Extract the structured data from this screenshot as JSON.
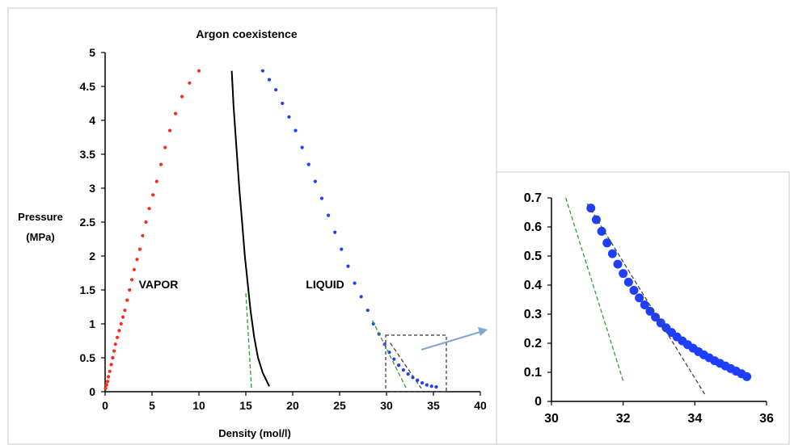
{
  "chart_data": [
    {
      "type": "scatter",
      "title": "Argon coexistence",
      "xlabel": "Density (mol/l)",
      "ylabel": "Pressure (MPa)",
      "xlim": [
        0,
        40
      ],
      "ylim": [
        0,
        5
      ],
      "xticks": [
        "0",
        "5",
        "10",
        "15",
        "20",
        "25",
        "30",
        "35",
        "40"
      ],
      "yticks": [
        "0",
        "0.5",
        "1",
        "1.5",
        "2",
        "2.5",
        "3",
        "3.5",
        "4",
        "4.5",
        "5"
      ],
      "annotations": [
        "VAPOR",
        "LIQUID"
      ],
      "colors": {
        "vapor": "#ff2a1a",
        "liquid": "#1f3fff",
        "curve": "#000000",
        "tangent_green": "#2ca02c",
        "tangent_dark": "#444444",
        "arrow": "#7fa7cf"
      },
      "series": [
        {
          "style": "dots",
          "color": "#ff2a1a",
          "x": [
            0.05,
            0.15,
            0.25,
            0.35,
            0.5,
            0.65,
            0.8,
            0.95,
            1.1,
            1.3,
            1.5,
            1.7,
            1.9,
            2.1,
            2.35,
            2.6,
            2.85,
            3.1,
            3.4,
            3.7,
            4.0,
            4.35,
            4.7,
            5.1,
            5.5,
            5.95,
            6.4,
            6.9,
            7.5,
            8.2,
            9.0,
            10.0
          ],
          "y": [
            0.05,
            0.1,
            0.15,
            0.22,
            0.3,
            0.4,
            0.5,
            0.6,
            0.7,
            0.8,
            0.9,
            1.0,
            1.1,
            1.2,
            1.35,
            1.5,
            1.65,
            1.8,
            1.95,
            2.1,
            2.3,
            2.5,
            2.7,
            2.9,
            3.1,
            3.35,
            3.6,
            3.85,
            4.1,
            4.35,
            4.55,
            4.73
          ]
        },
        {
          "style": "line",
          "color": "#000000",
          "x": [
            13.5,
            13.7,
            14.0,
            14.3,
            14.6,
            14.9,
            15.2,
            15.5,
            15.9,
            16.3,
            16.8,
            17.5
          ],
          "y": [
            4.73,
            4.2,
            3.6,
            3.0,
            2.5,
            2.0,
            1.6,
            1.2,
            0.8,
            0.5,
            0.28,
            0.08
          ]
        },
        {
          "style": "dots",
          "color": "#1f3fff",
          "x": [
            16.8,
            17.5,
            18.2,
            18.9,
            19.6,
            20.3,
            21.0,
            21.7,
            22.4,
            23.1,
            23.8,
            24.5,
            25.2,
            25.9,
            26.6,
            27.3,
            28.0,
            28.6,
            29.2,
            29.8,
            30.3,
            30.8,
            31.3,
            31.8,
            32.3,
            32.8,
            33.3,
            33.8,
            34.3,
            34.8,
            35.3
          ],
          "y": [
            4.73,
            4.6,
            4.45,
            4.25,
            4.05,
            3.85,
            3.6,
            3.35,
            3.1,
            2.85,
            2.6,
            2.35,
            2.1,
            1.85,
            1.6,
            1.4,
            1.2,
            1.0,
            0.85,
            0.7,
            0.58,
            0.48,
            0.39,
            0.32,
            0.26,
            0.21,
            0.17,
            0.13,
            0.1,
            0.08,
            0.07
          ]
        },
        {
          "style": "dashed-line",
          "color": "#2ca02c",
          "x": [
            15.0,
            15.6
          ],
          "y": [
            1.45,
            0.05
          ]
        },
        {
          "style": "dashed-line",
          "color": "#2ca02c",
          "x": [
            28.5,
            32.1
          ],
          "y": [
            1.05,
            0.05
          ]
        },
        {
          "style": "dashed-line",
          "color": "#444444",
          "x": [
            30.4,
            33.7
          ],
          "y": [
            0.72,
            0.05
          ]
        }
      ]
    },
    {
      "type": "scatter",
      "title": "",
      "xlim": [
        30,
        36
      ],
      "ylim": [
        0,
        0.7
      ],
      "xticks": [
        "30",
        "32",
        "34",
        "36"
      ],
      "yticks": [
        "0",
        "0.1",
        "0.2",
        "0.3",
        "0.4",
        "0.5",
        "0.6",
        "0.7"
      ],
      "series": [
        {
          "style": "dots",
          "color": "#1f3fff",
          "x": [
            31.1,
            31.25,
            31.4,
            31.55,
            31.7,
            31.85,
            32.0,
            32.15,
            32.3,
            32.45,
            32.6,
            32.75,
            32.9,
            33.05,
            33.2,
            33.35,
            33.5,
            33.65,
            33.8,
            33.95,
            34.1,
            34.25,
            34.4,
            34.55,
            34.7,
            34.85,
            35.0,
            35.15,
            35.3,
            35.45
          ],
          "y": [
            0.665,
            0.625,
            0.585,
            0.545,
            0.508,
            0.472,
            0.44,
            0.41,
            0.382,
            0.356,
            0.332,
            0.31,
            0.29,
            0.27,
            0.253,
            0.237,
            0.222,
            0.208,
            0.195,
            0.183,
            0.171,
            0.16,
            0.15,
            0.14,
            0.131,
            0.122,
            0.113,
            0.104,
            0.095,
            0.085
          ]
        },
        {
          "style": "dashed-line",
          "color": "#2ca02c",
          "x": [
            30.4,
            32.0
          ],
          "y": [
            0.7,
            0.07
          ]
        },
        {
          "style": "dashed-line",
          "color": "#444444",
          "x": [
            31.0,
            34.3
          ],
          "y": [
            0.68,
            0.02
          ]
        }
      ]
    }
  ]
}
